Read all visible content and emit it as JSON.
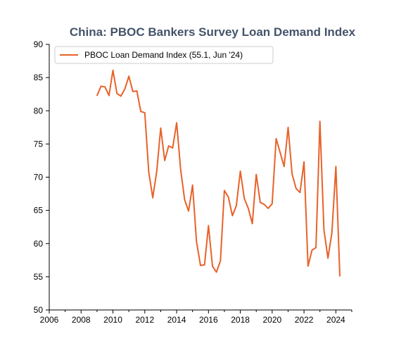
{
  "chart_data": {
    "type": "line",
    "title": "China: PBOC Bankers Survey Loan Demand Index",
    "xlabel": "",
    "ylabel": "",
    "xlim": [
      2006,
      2025
    ],
    "ylim": [
      50,
      90
    ],
    "x_ticks": [
      "2006",
      "2008",
      "2010",
      "2012",
      "2014",
      "2016",
      "2018",
      "2020",
      "2022",
      "2024"
    ],
    "y_ticks": [
      "50",
      "55",
      "60",
      "65",
      "70",
      "75",
      "80",
      "85",
      "90"
    ],
    "grid": false,
    "legend_position": "top-left",
    "colors": {
      "line": "#e8622a",
      "title": "#44546a"
    },
    "series": [
      {
        "name": "PBOC Loan Demand Index (55.1, Jun '24)",
        "x": [
          2009.0,
          2009.25,
          2009.5,
          2009.75,
          2010.0,
          2010.25,
          2010.5,
          2010.75,
          2011.0,
          2011.25,
          2011.5,
          2011.75,
          2012.0,
          2012.25,
          2012.5,
          2012.75,
          2013.0,
          2013.25,
          2013.5,
          2013.75,
          2014.0,
          2014.25,
          2014.5,
          2014.75,
          2015.0,
          2015.25,
          2015.5,
          2015.75,
          2016.0,
          2016.25,
          2016.5,
          2016.75,
          2017.0,
          2017.25,
          2017.5,
          2017.75,
          2018.0,
          2018.25,
          2018.5,
          2018.75,
          2019.0,
          2019.25,
          2019.5,
          2019.75,
          2020.0,
          2020.25,
          2020.5,
          2020.75,
          2021.0,
          2021.25,
          2021.5,
          2021.75,
          2022.0,
          2022.25,
          2022.5,
          2022.75,
          2023.0,
          2023.25,
          2023.5,
          2023.75,
          2024.0,
          2024.25
        ],
        "values": [
          82.3,
          83.7,
          83.6,
          82.3,
          86.1,
          82.6,
          82.2,
          83.3,
          85.2,
          82.9,
          83.0,
          79.9,
          79.7,
          70.8,
          66.9,
          70.9,
          77.4,
          72.5,
          74.7,
          74.4,
          78.2,
          71.2,
          66.6,
          64.9,
          68.8,
          60.3,
          56.7,
          56.8,
          62.7,
          56.6,
          55.7,
          57.4,
          68.0,
          67.0,
          64.2,
          65.7,
          70.9,
          66.8,
          65.3,
          63.0,
          70.4,
          66.2,
          65.9,
          65.3,
          66.0,
          75.8,
          73.7,
          71.6,
          77.5,
          70.5,
          68.3,
          67.7,
          72.3,
          56.6,
          59.0,
          59.4,
          78.4,
          62.1,
          57.8,
          61.6,
          71.6,
          55.1
        ]
      }
    ]
  }
}
